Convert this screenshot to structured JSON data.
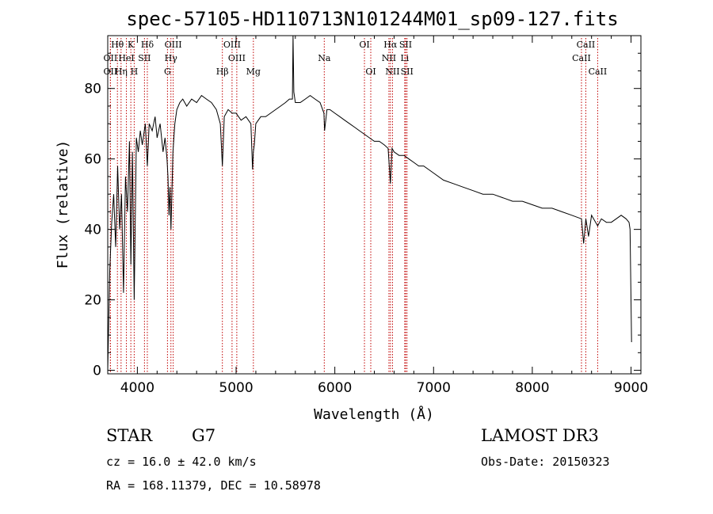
{
  "chart_data": {
    "type": "line",
    "title": "spec-57105-HD110713N101244M01_sp09-127.fits",
    "xlabel": "Wavelength (Å)",
    "ylabel": "Flux (relative)",
    "xlim": [
      3700,
      9100
    ],
    "ylim": [
      -1,
      95
    ],
    "xticks": [
      4000,
      5000,
      6000,
      7000,
      8000,
      9000
    ],
    "yticks": [
      0,
      20,
      40,
      60,
      80
    ],
    "series": [
      {
        "name": "flux",
        "x": [
          3700,
          3720,
          3740,
          3760,
          3780,
          3800,
          3820,
          3840,
          3860,
          3880,
          3900,
          3920,
          3934,
          3950,
          3968,
          3990,
          4010,
          4030,
          4050,
          4080,
          4101,
          4120,
          4150,
          4180,
          4200,
          4230,
          4260,
          4280,
          4300,
          4310,
          4320,
          4330,
          4340,
          4360,
          4380,
          4400,
          4430,
          4460,
          4500,
          4550,
          4600,
          4650,
          4700,
          4750,
          4800,
          4840,
          4861,
          4880,
          4920,
          4960,
          5000,
          5050,
          5100,
          5150,
          5167,
          5175,
          5184,
          5200,
          5250,
          5300,
          5350,
          5400,
          5450,
          5500,
          5540,
          5570,
          5577,
          5585,
          5600,
          5650,
          5700,
          5750,
          5800,
          5850,
          5890,
          5896,
          5920,
          5950,
          6000,
          6050,
          6100,
          6150,
          6200,
          6250,
          6300,
          6350,
          6400,
          6450,
          6500,
          6540,
          6563,
          6580,
          6600,
          6650,
          6700,
          6750,
          6800,
          6850,
          6900,
          6950,
          7000,
          7100,
          7200,
          7300,
          7400,
          7500,
          7600,
          7700,
          7800,
          7900,
          8000,
          8100,
          8200,
          8300,
          8400,
          8498,
          8520,
          8542,
          8570,
          8600,
          8662,
          8700,
          8750,
          8800,
          8850,
          8900,
          8950,
          8980,
          8990,
          9000,
          9005
        ],
        "values": [
          0,
          28,
          42,
          50,
          35,
          58,
          40,
          50,
          22,
          55,
          45,
          65,
          30,
          62,
          20,
          66,
          62,
          68,
          64,
          70,
          58,
          70,
          68,
          72,
          66,
          70,
          62,
          66,
          60,
          55,
          44,
          52,
          40,
          62,
          70,
          74,
          76,
          77,
          75,
          77,
          76,
          78,
          77,
          76,
          74,
          70,
          58,
          72,
          74,
          73,
          73,
          71,
          72,
          70,
          57,
          62,
          64,
          70,
          72,
          72,
          73,
          74,
          75,
          76,
          77,
          77,
          95,
          79,
          76,
          76,
          77,
          78,
          77,
          76,
          73,
          68,
          74,
          74,
          73,
          72,
          71,
          70,
          69,
          68,
          67,
          66,
          65,
          65,
          64,
          63,
          53,
          63,
          62,
          61,
          61,
          60,
          59,
          58,
          58,
          57,
          56,
          54,
          53,
          52,
          51,
          50,
          50,
          49,
          48,
          48,
          47,
          46,
          46,
          45,
          44,
          43,
          36,
          43,
          38,
          44,
          41,
          43,
          42,
          42,
          43,
          44,
          43,
          42,
          40,
          20,
          8
        ]
      }
    ],
    "line_markers": [
      {
        "label": "Hθ",
        "wave": 3798,
        "row": 0
      },
      {
        "label": "OII",
        "wave": 3727,
        "row": 1
      },
      {
        "label": "OII",
        "wave": 3727,
        "row": 2
      },
      {
        "label": "Hη",
        "wave": 3835,
        "row": 2
      },
      {
        "label": "HeI",
        "wave": 3889,
        "row": 1
      },
      {
        "label": "K",
        "wave": 3934,
        "row": 0
      },
      {
        "label": "H",
        "wave": 3968,
        "row": 2
      },
      {
        "label": "SII",
        "wave": 4072,
        "row": 1
      },
      {
        "label": "Hδ",
        "wave": 4101,
        "row": 0
      },
      {
        "label": "OIII",
        "wave": 4363,
        "row": 0
      },
      {
        "label": "Hγ",
        "wave": 4340,
        "row": 1
      },
      {
        "label": "G",
        "wave": 4305,
        "row": 2
      },
      {
        "label": "Hβ",
        "wave": 4861,
        "row": 2
      },
      {
        "label": "OIII",
        "wave": 4959,
        "row": 0
      },
      {
        "label": "OIII",
        "wave": 5007,
        "row": 1
      },
      {
        "label": "Mg",
        "wave": 5175,
        "row": 2
      },
      {
        "label": "Na",
        "wave": 5893,
        "row": 1
      },
      {
        "label": "OI",
        "wave": 6300,
        "row": 0
      },
      {
        "label": "OI",
        "wave": 6364,
        "row": 2
      },
      {
        "label": "Hα",
        "wave": 6563,
        "row": 0
      },
      {
        "label": "NII",
        "wave": 6548,
        "row": 1
      },
      {
        "label": "NII",
        "wave": 6584,
        "row": 2
      },
      {
        "label": "SII",
        "wave": 6717,
        "row": 0
      },
      {
        "label": "Li",
        "wave": 6708,
        "row": 1
      },
      {
        "label": "SII",
        "wave": 6731,
        "row": 2
      },
      {
        "label": "CaII",
        "wave": 8542,
        "row": 0
      },
      {
        "label": "CaII",
        "wave": 8498,
        "row": 1
      },
      {
        "label": "CaII",
        "wave": 8662,
        "row": 2
      }
    ],
    "colors": {
      "spectrum": "#000000",
      "marker": "#c00000",
      "axis": "#000000"
    }
  },
  "info": {
    "class": "STAR",
    "subclass": "G7",
    "survey": "LAMOST DR3",
    "redshift": "cz = 16.0 ± 42.0 km/s",
    "obs_date": "Obs-Date: 20150323",
    "coords": "RA = 168.11379, DEC =  10.58978"
  }
}
